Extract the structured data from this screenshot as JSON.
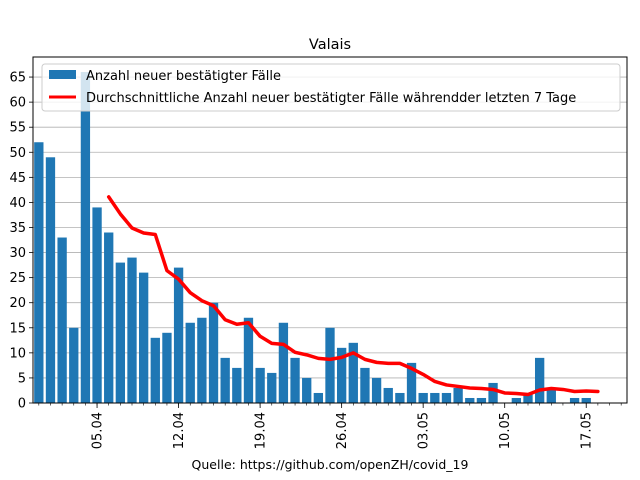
{
  "chart_data": {
    "type": "bar",
    "title": "Valais",
    "source_label": "Quelle: https://github.com/openZH/covid_19",
    "xlabel": "",
    "ylabel": "",
    "ylim": [
      0,
      69
    ],
    "yticks": [
      0,
      5,
      10,
      15,
      20,
      25,
      30,
      35,
      40,
      45,
      50,
      55,
      60,
      65
    ],
    "grid": "horizontal",
    "legend_position": "top-left",
    "x_dates": [
      "2020-03-31",
      "2020-04-01",
      "2020-04-02",
      "2020-04-03",
      "2020-04-04",
      "2020-04-05",
      "2020-04-06",
      "2020-04-07",
      "2020-04-08",
      "2020-04-09",
      "2020-04-10",
      "2020-04-11",
      "2020-04-12",
      "2020-04-13",
      "2020-04-14",
      "2020-04-15",
      "2020-04-16",
      "2020-04-17",
      "2020-04-18",
      "2020-04-19",
      "2020-04-20",
      "2020-04-21",
      "2020-04-22",
      "2020-04-23",
      "2020-04-24",
      "2020-04-25",
      "2020-04-26",
      "2020-04-27",
      "2020-04-28",
      "2020-04-29",
      "2020-04-30",
      "2020-05-01",
      "2020-05-02",
      "2020-05-03",
      "2020-05-04",
      "2020-05-05",
      "2020-05-06",
      "2020-05-07",
      "2020-05-08",
      "2020-05-09",
      "2020-05-10",
      "2020-05-11",
      "2020-05-12",
      "2020-05-13",
      "2020-05-14",
      "2020-05-15",
      "2020-05-16",
      "2020-05-17",
      "2020-05-18",
      "2020-05-19",
      "2020-05-20"
    ],
    "x_tick_labels": [
      {
        "date": "2020-04-05",
        "label": "05.04"
      },
      {
        "date": "2020-04-12",
        "label": "12.04"
      },
      {
        "date": "2020-04-19",
        "label": "19.04"
      },
      {
        "date": "2020-04-26",
        "label": "26.04"
      },
      {
        "date": "2020-05-03",
        "label": "03.05"
      },
      {
        "date": "2020-05-10",
        "label": "10.05"
      },
      {
        "date": "2020-05-17",
        "label": "17.05"
      }
    ],
    "series": [
      {
        "name": "Anzahl neuer bestätigter Fälle",
        "type": "bar",
        "color": "#1f77b4",
        "values": [
          52,
          49,
          33,
          15,
          66,
          39,
          34,
          28,
          29,
          26,
          13,
          14,
          27,
          16,
          17,
          20,
          9,
          7,
          17,
          7,
          6,
          16,
          9,
          5,
          2,
          15,
          11,
          12,
          7,
          5,
          3,
          2,
          8,
          2,
          2,
          2,
          3,
          1,
          1,
          4,
          0,
          1,
          2,
          9,
          3,
          0,
          1,
          1,
          0,
          0,
          0
        ]
      },
      {
        "name": "Durchschnittliche Anzahl neuer bestätigter Fälle währendder letzten 7 Tage",
        "type": "line",
        "color": "#ff0000",
        "values": [
          null,
          null,
          null,
          null,
          null,
          null,
          41.1,
          37.7,
          34.9,
          33.9,
          33.6,
          26.4,
          24.7,
          22.0,
          20.4,
          19.4,
          16.6,
          15.7,
          16.0,
          13.3,
          11.9,
          11.7,
          10.1,
          9.6,
          8.9,
          8.7,
          9.1,
          10.0,
          8.7,
          8.1,
          7.9,
          7.9,
          6.9,
          5.7,
          4.3,
          3.6,
          3.3,
          3.0,
          2.9,
          2.7,
          2.0,
          1.9,
          1.7,
          2.6,
          2.9,
          2.7,
          2.3,
          2.4,
          2.3,
          null,
          null
        ]
      }
    ]
  }
}
